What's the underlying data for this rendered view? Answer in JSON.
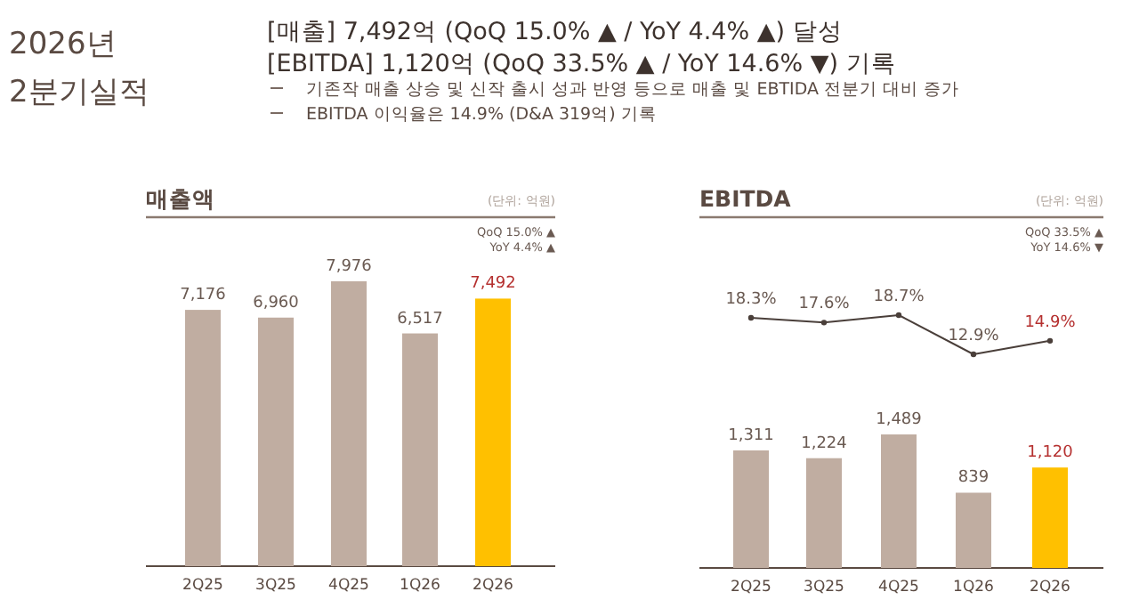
{
  "chart_data": [
    {
      "type": "other",
      "title": "2026년 2분기실적",
      "annotations": [
        "[매출] 7,492억 (QoQ 15.0% ▲ / YoY 4.4% ▲) 달성",
        "[EBITDA] 1,120억 (QoQ 33.5% ▲ / YoY 14.6% ▼) 기록",
        "기존작 매출 상승 및 신작 출시 성과 반영 등으로 매출 및 EBTIDA 전분기 대비 증가",
        "EBITDA 이익율은 14.9% (D&A 319억) 기록"
      ]
    },
    {
      "type": "bar",
      "title": "매출액",
      "categories": [
        "2Q25",
        "3Q25",
        "4Q25",
        "1Q26",
        "2Q26"
      ],
      "values": [
        7176,
        6960,
        7976,
        6517,
        7492
      ],
      "colors": [
        "#c0ada1",
        "#c0ada1",
        "#c0ada1",
        "#c0ada1",
        "#ffc000"
      ],
      "value_labels": [
        "7,176",
        "6,960",
        "7,976",
        "6,517",
        "7,492"
      ],
      "annotations": [
        "(단위: 억원)",
        "QoQ 15.0% ▲",
        "YoY 4.4% ▲"
      ]
    },
    {
      "type": "line",
      "title": "EBITDA",
      "categories": [
        null,
        null,
        null,
        null,
        null
      ],
      "marker": "circle",
      "color": "#4a3f3a",
      "values": [
        18.3,
        17.6,
        18.7,
        12.9,
        14.9
      ],
      "value_labels": [
        "18.3%",
        "17.6%",
        "18.7%",
        "12.9%",
        "14.9%"
      ],
      "annotations": [
        "(단위: 억원)",
        "QoQ 33.5% ▲",
        "YoY 14.6% ▼"
      ]
    },
    {
      "type": "bar",
      "categories": [
        "2Q25",
        "3Q25",
        "4Q25",
        "1Q26",
        "2Q26"
      ],
      "colors": [
        "#c0ada1",
        "#c0ada1",
        "#c0ada1",
        "#c0ada1",
        "#ffc000"
      ],
      "values": [
        1311,
        1224,
        1489,
        839,
        1120
      ],
      "value_labels": [
        "1,311",
        "1,224",
        "1,489",
        "839",
        "1,120"
      ]
    }
  ]
}
